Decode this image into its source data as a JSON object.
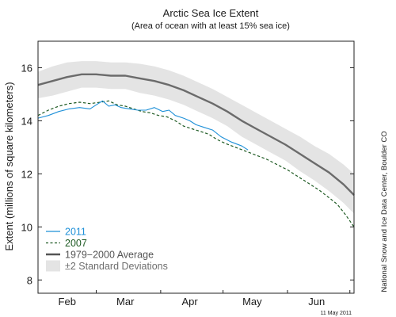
{
  "chart_data": {
    "type": "line",
    "title": "Arctic Sea Ice Extent",
    "subtitle": "(Area of ocean with at least 15% sea ice)",
    "ylabel": "Extent (millions of square kilometers)",
    "xlabel": "",
    "xlim": [
      0,
      152
    ],
    "ylim": [
      7.5,
      17
    ],
    "yticks": [
      8,
      10,
      12,
      14,
      16
    ],
    "ytick_labels": [
      "8",
      "10",
      "12",
      "14",
      "16"
    ],
    "xticks": [
      {
        "label": "Feb",
        "x": 14
      },
      {
        "label": "Mar",
        "x": 42
      },
      {
        "label": "Apr",
        "x": 73
      },
      {
        "label": "May",
        "x": 103
      },
      {
        "label": "Jun",
        "x": 134
      }
    ],
    "grid": false,
    "legend_position": "bottom-left",
    "credit": "National Snow and Ice Data Center, Boulder CO",
    "date_stamp": "11 May 2011",
    "series": [
      {
        "name": "2011",
        "color": "#1e90d8",
        "style": "solid",
        "points": [
          [
            0,
            14.1
          ],
          [
            5,
            14.2
          ],
          [
            10,
            14.35
          ],
          [
            15,
            14.45
          ],
          [
            20,
            14.5
          ],
          [
            25,
            14.45
          ],
          [
            28,
            14.6
          ],
          [
            31,
            14.75
          ],
          [
            34,
            14.55
          ],
          [
            37,
            14.6
          ],
          [
            40,
            14.5
          ],
          [
            44,
            14.45
          ],
          [
            48,
            14.4
          ],
          [
            52,
            14.4
          ],
          [
            56,
            14.5
          ],
          [
            60,
            14.35
          ],
          [
            63,
            14.4
          ],
          [
            66,
            14.2
          ],
          [
            70,
            14.1
          ],
          [
            73,
            14.0
          ],
          [
            76,
            13.85
          ],
          [
            80,
            13.75
          ],
          [
            84,
            13.65
          ],
          [
            88,
            13.4
          ],
          [
            93,
            13.2
          ],
          [
            98,
            13.05
          ],
          [
            101,
            12.9
          ]
        ]
      },
      {
        "name": "2007",
        "color": "#1e5a23",
        "style": "dashed",
        "points": [
          [
            0,
            14.2
          ],
          [
            5,
            14.4
          ],
          [
            10,
            14.55
          ],
          [
            15,
            14.65
          ],
          [
            20,
            14.7
          ],
          [
            25,
            14.65
          ],
          [
            30,
            14.7
          ],
          [
            34,
            14.75
          ],
          [
            38,
            14.6
          ],
          [
            42,
            14.55
          ],
          [
            46,
            14.45
          ],
          [
            50,
            14.35
          ],
          [
            54,
            14.3
          ],
          [
            58,
            14.2
          ],
          [
            62,
            14.15
          ],
          [
            66,
            14.0
          ],
          [
            70,
            13.8
          ],
          [
            74,
            13.7
          ],
          [
            78,
            13.6
          ],
          [
            82,
            13.5
          ],
          [
            86,
            13.3
          ],
          [
            90,
            13.15
          ],
          [
            95,
            13.0
          ],
          [
            100,
            12.85
          ],
          [
            105,
            12.7
          ],
          [
            110,
            12.55
          ],
          [
            115,
            12.35
          ],
          [
            120,
            12.15
          ],
          [
            125,
            11.9
          ],
          [
            130,
            11.65
          ],
          [
            135,
            11.4
          ],
          [
            140,
            11.1
          ],
          [
            144,
            10.85
          ],
          [
            148,
            10.45
          ],
          [
            152,
            10.0
          ]
        ]
      },
      {
        "name": "1979−2000 Average",
        "color": "#6b6b6b",
        "style": "solid",
        "points": [
          [
            0,
            15.35
          ],
          [
            7,
            15.5
          ],
          [
            14,
            15.65
          ],
          [
            21,
            15.75
          ],
          [
            28,
            15.75
          ],
          [
            35,
            15.7
          ],
          [
            42,
            15.7
          ],
          [
            49,
            15.6
          ],
          [
            56,
            15.5
          ],
          [
            63,
            15.35
          ],
          [
            70,
            15.15
          ],
          [
            77,
            14.9
          ],
          [
            84,
            14.65
          ],
          [
            91,
            14.35
          ],
          [
            98,
            14.0
          ],
          [
            105,
            13.7
          ],
          [
            112,
            13.4
          ],
          [
            119,
            13.1
          ],
          [
            126,
            12.75
          ],
          [
            133,
            12.4
          ],
          [
            140,
            12.05
          ],
          [
            147,
            11.6
          ],
          [
            152,
            11.2
          ]
        ]
      }
    ],
    "band": {
      "name": "±2 Standard Deviations",
      "color": "#e4e4e4",
      "x": [
        0,
        7,
        14,
        21,
        28,
        35,
        42,
        49,
        56,
        63,
        70,
        77,
        84,
        91,
        98,
        105,
        112,
        119,
        126,
        133,
        140,
        147,
        152
      ],
      "upper": [
        15.85,
        16.05,
        16.2,
        16.25,
        16.25,
        16.2,
        16.2,
        16.15,
        16.05,
        15.9,
        15.7,
        15.45,
        15.2,
        14.9,
        14.6,
        14.3,
        14.0,
        13.7,
        13.4,
        13.05,
        12.75,
        12.35,
        12.0
      ],
      "lower": [
        14.85,
        14.95,
        15.1,
        15.25,
        15.25,
        15.2,
        15.2,
        15.05,
        14.95,
        14.8,
        14.6,
        14.35,
        14.1,
        13.8,
        13.4,
        13.1,
        12.8,
        12.5,
        12.1,
        11.75,
        11.35,
        10.9,
        10.5
      ]
    },
    "legend": [
      {
        "label": "2011",
        "color": "#1e90d8",
        "style": "solid"
      },
      {
        "label": "2007",
        "color": "#1e5a23",
        "style": "dashed"
      },
      {
        "label": "1979−2000 Average",
        "color": "#555555",
        "style": "thick"
      },
      {
        "label": "±2 Standard Deviations",
        "color": "#6e6e6e",
        "style": "band"
      }
    ]
  }
}
